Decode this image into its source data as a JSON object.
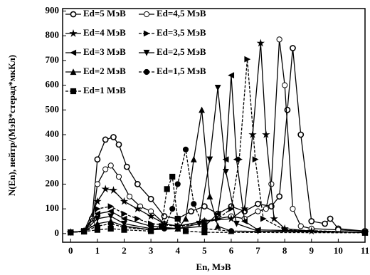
{
  "chart_data": {
    "type": "line",
    "xlabel": "En, МэВ",
    "ylabel": "N(En), нейтр/(МэВ*стерад*мкКл)",
    "xlim": [
      -0.3,
      11
    ],
    "ylim": [
      -35,
      910
    ],
    "xticks": [
      0,
      1,
      2,
      3,
      4,
      5,
      6,
      7,
      8,
      9,
      10,
      11
    ],
    "yticks": [
      0,
      100,
      200,
      300,
      400,
      500,
      600,
      700,
      800,
      900
    ],
    "series": [
      {
        "name": "Ed=5 МэВ",
        "color": "#000000",
        "marker": "half",
        "dash": false,
        "x": [
          0,
          0.5,
          0.8,
          1,
          1.3,
          1.6,
          1.8,
          2.1,
          2.5,
          3,
          3.5,
          4,
          4.5,
          5,
          5.5,
          6,
          6.5,
          7,
          7.5,
          7.8,
          8.1,
          8.3,
          8.6,
          9,
          9.5,
          9.7,
          10,
          11
        ],
        "values": [
          5,
          10,
          60,
          300,
          380,
          390,
          360,
          270,
          200,
          140,
          70,
          60,
          90,
          110,
          80,
          110,
          90,
          120,
          110,
          150,
          500,
          750,
          400,
          50,
          40,
          60,
          20,
          10
        ]
      },
      {
        "name": "Ed=4,5 МэВ",
        "color": "#000000",
        "marker": "open",
        "dash": false,
        "x": [
          0,
          0.5,
          0.8,
          1,
          1.3,
          1.5,
          1.8,
          2.2,
          2.6,
          3,
          3.5,
          4,
          5,
          6,
          6.5,
          7,
          7.3,
          7.5,
          7.8,
          8,
          8.3,
          8.6,
          9,
          10,
          11
        ],
        "values": [
          5,
          10,
          40,
          200,
          260,
          275,
          230,
          150,
          110,
          90,
          40,
          30,
          50,
          70,
          60,
          90,
          100,
          200,
          785,
          600,
          100,
          30,
          20,
          15,
          10
        ]
      },
      {
        "name": "Ed=4 МэВ",
        "color": "#000000",
        "marker": "star",
        "dash": false,
        "x": [
          0,
          0.5,
          1,
          1.3,
          1.6,
          2,
          2.5,
          3,
          3.5,
          4,
          5,
          6,
          6.5,
          6.8,
          7.1,
          7.3,
          7.6,
          8,
          9,
          11
        ],
        "values": [
          5,
          10,
          130,
          180,
          175,
          130,
          100,
          70,
          40,
          30,
          50,
          60,
          100,
          400,
          770,
          400,
          60,
          20,
          10,
          5
        ]
      },
      {
        "name": "Ed=3,5 МэВ",
        "color": "#000000",
        "marker": "right",
        "dash": true,
        "x": [
          0,
          0.5,
          1,
          1.5,
          2,
          2.5,
          3,
          4,
          5,
          5.5,
          6,
          6.3,
          6.6,
          6.9,
          7.2,
          8,
          11
        ],
        "values": [
          5,
          10,
          100,
          110,
          80,
          60,
          40,
          30,
          40,
          60,
          100,
          300,
          705,
          300,
          60,
          15,
          5
        ]
      },
      {
        "name": "Ed=3 МэВ",
        "color": "#000000",
        "marker": "left",
        "dash": false,
        "x": [
          0,
          0.5,
          1,
          1.5,
          2,
          3,
          4,
          5,
          5.5,
          5.8,
          6,
          6.2,
          6.5,
          7,
          11
        ],
        "values": [
          5,
          10,
          80,
          90,
          60,
          30,
          20,
          30,
          80,
          300,
          640,
          300,
          50,
          15,
          5
        ]
      },
      {
        "name": "Ed=2,5 МэВ",
        "color": "#000000",
        "marker": "down",
        "dash": false,
        "x": [
          0,
          0.5,
          1,
          1.5,
          2,
          3,
          4,
          4.8,
          5.2,
          5.5,
          5.8,
          6.2,
          7,
          11
        ],
        "values": [
          5,
          10,
          60,
          70,
          40,
          20,
          20,
          40,
          300,
          590,
          250,
          40,
          10,
          5
        ]
      },
      {
        "name": "Ed=2 МэВ",
        "color": "#000000",
        "marker": "up",
        "dash": false,
        "x": [
          0,
          0.5,
          1,
          1.5,
          2,
          3,
          4,
          4.3,
          4.6,
          4.9,
          5.2,
          5.5,
          6,
          11
        ],
        "values": [
          5,
          10,
          40,
          50,
          30,
          15,
          20,
          60,
          300,
          500,
          150,
          30,
          10,
          5
        ]
      },
      {
        "name": "Ed=1,5 МэВ",
        "color": "#000000",
        "marker": "filled",
        "dash": true,
        "x": [
          0,
          0.5,
          1,
          1.5,
          2,
          3,
          3.5,
          3.8,
          4,
          4.3,
          4.6,
          5,
          6,
          11
        ],
        "values": [
          5,
          8,
          30,
          40,
          25,
          15,
          20,
          100,
          200,
          340,
          120,
          20,
          10,
          5
        ]
      },
      {
        "name": "Ed=1 МэВ",
        "color": "#000000",
        "marker": "square",
        "dash": true,
        "x": [
          0,
          0.5,
          1,
          1.5,
          2,
          3,
          3.4,
          3.6,
          3.8,
          4,
          4.3,
          5,
          11
        ],
        "values": [
          5,
          8,
          15,
          20,
          15,
          10,
          30,
          180,
          230,
          60,
          10,
          5,
          3
        ]
      }
    ]
  }
}
